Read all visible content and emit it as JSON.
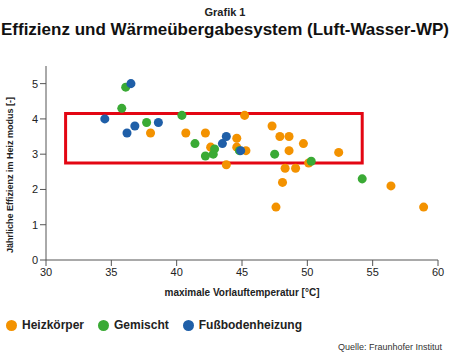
{
  "chart_data": {
    "type": "scatter",
    "header": "Grafik 1",
    "title": "Effizienz und Wärmeübergabesystem (Luft-Wasser-WP)",
    "x_label": "maximale Vorlauftemperatur [°C]",
    "y_label": "Jährliche Effizienz im Heiz modus [-]",
    "source": "Quelle: Fraunhofer Institut",
    "xlim": [
      30,
      60
    ],
    "xticks": [
      30,
      35,
      40,
      45,
      50,
      55,
      60
    ],
    "ylim": [
      0,
      5.5
    ],
    "yticks": [
      0,
      1,
      2,
      3,
      4,
      5
    ],
    "grid": false,
    "legend": "bottom left",
    "highlight_box": {
      "x": [
        31.5,
        54.2
      ],
      "y": [
        2.75,
        4.15
      ],
      "color": "#e30613"
    },
    "series": [
      {
        "name": "Heizkörper",
        "color": "#f39200",
        "x": [
          38,
          40.7,
          42.2,
          42.6,
          43.8,
          44.6,
          44.6,
          45.2,
          45.3,
          47.3,
          47.6,
          47.9,
          48.6,
          48.1,
          48.3,
          48.6,
          49.1,
          49.7,
          50.1,
          52.4,
          56.4,
          58.9
        ],
        "values": [
          3.6,
          3.6,
          3.6,
          3.2,
          2.7,
          3.45,
          3.2,
          4.1,
          3.1,
          3.8,
          1.5,
          3.5,
          3.5,
          2.2,
          2.6,
          3.1,
          2.6,
          3.3,
          2.75,
          3.05,
          2.1,
          1.5
        ]
      },
      {
        "name": "Gemischt",
        "color": "#3aaa35",
        "x": [
          35.8,
          36.1,
          37.7,
          40.4,
          41.4,
          42.2,
          42.8,
          42.9,
          44.8,
          47.5,
          50.3,
          54.2
        ],
        "values": [
          4.3,
          4.9,
          3.9,
          4.1,
          3.3,
          2.95,
          3.0,
          3.15,
          3.1,
          3.0,
          2.8,
          2.3
        ]
      },
      {
        "name": "Fußbodenheizung",
        "color": "#1f5fa8",
        "x": [
          34.5,
          36.2,
          36.5,
          36.8,
          38.6,
          43.5,
          43.8,
          44.9
        ],
        "values": [
          4.0,
          3.6,
          5.0,
          3.8,
          3.9,
          3.3,
          3.5,
          3.1
        ]
      }
    ]
  }
}
